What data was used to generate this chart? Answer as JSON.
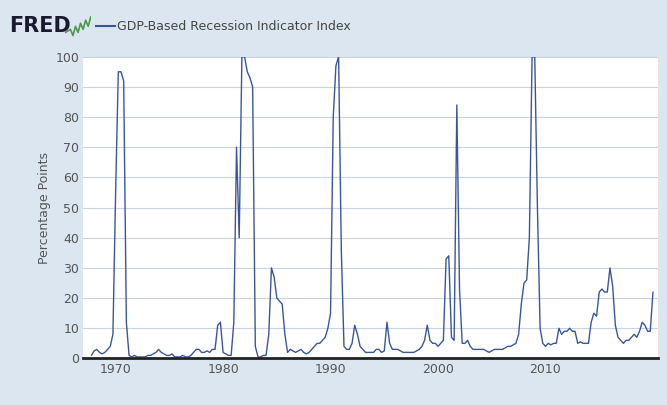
{
  "title": "GDP-Based Recession Indicator Index",
  "ylabel": "Percentage Points",
  "line_color": "#3a5795",
  "background_color": "#dce6f0",
  "plot_bg_color": "#ffffff",
  "grid_color": "#c8d4e3",
  "title_color": "#444444",
  "xlim_start": 1967.0,
  "xlim_end": 2020.5,
  "ylim": [
    0,
    100
  ],
  "yticks": [
    0,
    10,
    20,
    30,
    40,
    50,
    60,
    70,
    80,
    90,
    100
  ],
  "xticks": [
    1970,
    1980,
    1990,
    2000,
    2010
  ],
  "series_label": "GDP-Based Recession Indicator Index",
  "data": [
    [
      1967.75,
      1.0
    ],
    [
      1968.0,
      2.5
    ],
    [
      1968.25,
      3.0
    ],
    [
      1968.5,
      2.0
    ],
    [
      1968.75,
      1.5
    ],
    [
      1969.0,
      2.0
    ],
    [
      1969.25,
      3.0
    ],
    [
      1969.5,
      4.0
    ],
    [
      1969.75,
      8.0
    ],
    [
      1970.0,
      55.0
    ],
    [
      1970.25,
      95.0
    ],
    [
      1970.5,
      95.0
    ],
    [
      1970.75,
      92.0
    ],
    [
      1971.0,
      12.0
    ],
    [
      1971.25,
      1.0
    ],
    [
      1971.5,
      0.5
    ],
    [
      1971.75,
      1.0
    ],
    [
      1972.0,
      0.5
    ],
    [
      1972.25,
      0.5
    ],
    [
      1972.5,
      0.5
    ],
    [
      1972.75,
      0.5
    ],
    [
      1973.0,
      1.0
    ],
    [
      1973.25,
      1.0
    ],
    [
      1973.5,
      1.5
    ],
    [
      1973.75,
      2.0
    ],
    [
      1974.0,
      3.0
    ],
    [
      1974.25,
      2.0
    ],
    [
      1974.5,
      1.5
    ],
    [
      1974.75,
      1.0
    ],
    [
      1975.0,
      1.0
    ],
    [
      1975.25,
      1.5
    ],
    [
      1975.5,
      0.5
    ],
    [
      1975.75,
      0.5
    ],
    [
      1976.0,
      0.5
    ],
    [
      1976.25,
      1.0
    ],
    [
      1976.5,
      0.5
    ],
    [
      1976.75,
      0.5
    ],
    [
      1977.0,
      1.0
    ],
    [
      1977.25,
      2.0
    ],
    [
      1977.5,
      3.0
    ],
    [
      1977.75,
      3.0
    ],
    [
      1978.0,
      2.0
    ],
    [
      1978.25,
      2.0
    ],
    [
      1978.5,
      2.5
    ],
    [
      1978.75,
      2.0
    ],
    [
      1979.0,
      3.0
    ],
    [
      1979.25,
      3.0
    ],
    [
      1979.5,
      11.0
    ],
    [
      1979.75,
      12.0
    ],
    [
      1980.0,
      2.0
    ],
    [
      1980.25,
      1.5
    ],
    [
      1980.5,
      1.0
    ],
    [
      1980.75,
      1.0
    ],
    [
      1981.0,
      12.0
    ],
    [
      1981.25,
      70.0
    ],
    [
      1981.5,
      40.0
    ],
    [
      1981.75,
      100.0
    ],
    [
      1982.0,
      100.0
    ],
    [
      1982.25,
      95.0
    ],
    [
      1982.5,
      93.0
    ],
    [
      1982.75,
      90.0
    ],
    [
      1983.0,
      4.0
    ],
    [
      1983.25,
      0.5
    ],
    [
      1983.5,
      0.5
    ],
    [
      1983.75,
      1.0
    ],
    [
      1984.0,
      1.0
    ],
    [
      1984.25,
      8.0
    ],
    [
      1984.5,
      30.0
    ],
    [
      1984.75,
      27.0
    ],
    [
      1985.0,
      20.0
    ],
    [
      1985.25,
      19.0
    ],
    [
      1985.5,
      18.0
    ],
    [
      1985.75,
      8.0
    ],
    [
      1986.0,
      2.0
    ],
    [
      1986.25,
      3.0
    ],
    [
      1986.5,
      2.5
    ],
    [
      1986.75,
      2.0
    ],
    [
      1987.0,
      2.5
    ],
    [
      1987.25,
      3.0
    ],
    [
      1987.5,
      2.0
    ],
    [
      1987.75,
      1.5
    ],
    [
      1988.0,
      2.0
    ],
    [
      1988.25,
      3.0
    ],
    [
      1988.5,
      4.0
    ],
    [
      1988.75,
      5.0
    ],
    [
      1989.0,
      5.0
    ],
    [
      1989.25,
      6.0
    ],
    [
      1989.5,
      7.0
    ],
    [
      1989.75,
      10.0
    ],
    [
      1990.0,
      15.0
    ],
    [
      1990.25,
      80.0
    ],
    [
      1990.5,
      97.0
    ],
    [
      1990.75,
      100.0
    ],
    [
      1991.0,
      36.0
    ],
    [
      1991.25,
      4.0
    ],
    [
      1991.5,
      3.0
    ],
    [
      1991.75,
      3.0
    ],
    [
      1992.0,
      5.0
    ],
    [
      1992.25,
      11.0
    ],
    [
      1992.5,
      8.0
    ],
    [
      1992.75,
      4.0
    ],
    [
      1993.0,
      3.0
    ],
    [
      1993.25,
      2.0
    ],
    [
      1993.5,
      2.0
    ],
    [
      1993.75,
      2.0
    ],
    [
      1994.0,
      2.0
    ],
    [
      1994.25,
      3.0
    ],
    [
      1994.5,
      3.0
    ],
    [
      1994.75,
      2.0
    ],
    [
      1995.0,
      2.5
    ],
    [
      1995.25,
      12.0
    ],
    [
      1995.5,
      5.0
    ],
    [
      1995.75,
      3.0
    ],
    [
      1996.0,
      3.0
    ],
    [
      1996.25,
      3.0
    ],
    [
      1996.5,
      2.5
    ],
    [
      1996.75,
      2.0
    ],
    [
      1997.0,
      2.0
    ],
    [
      1997.25,
      2.0
    ],
    [
      1997.5,
      2.0
    ],
    [
      1997.75,
      2.0
    ],
    [
      1998.0,
      2.5
    ],
    [
      1998.25,
      3.0
    ],
    [
      1998.5,
      4.0
    ],
    [
      1998.75,
      6.0
    ],
    [
      1999.0,
      11.0
    ],
    [
      1999.25,
      6.0
    ],
    [
      1999.5,
      5.0
    ],
    [
      1999.75,
      5.0
    ],
    [
      2000.0,
      4.0
    ],
    [
      2000.25,
      5.0
    ],
    [
      2000.5,
      6.0
    ],
    [
      2000.75,
      33.0
    ],
    [
      2001.0,
      34.0
    ],
    [
      2001.25,
      7.0
    ],
    [
      2001.5,
      6.0
    ],
    [
      2001.75,
      84.0
    ],
    [
      2002.0,
      23.0
    ],
    [
      2002.25,
      5.0
    ],
    [
      2002.5,
      5.0
    ],
    [
      2002.75,
      6.0
    ],
    [
      2003.0,
      4.0
    ],
    [
      2003.25,
      3.0
    ],
    [
      2003.5,
      3.0
    ],
    [
      2003.75,
      3.0
    ],
    [
      2004.0,
      3.0
    ],
    [
      2004.25,
      3.0
    ],
    [
      2004.5,
      2.5
    ],
    [
      2004.75,
      2.0
    ],
    [
      2005.0,
      2.5
    ],
    [
      2005.25,
      3.0
    ],
    [
      2005.5,
      3.0
    ],
    [
      2005.75,
      3.0
    ],
    [
      2006.0,
      3.0
    ],
    [
      2006.25,
      3.5
    ],
    [
      2006.5,
      4.0
    ],
    [
      2006.75,
      4.0
    ],
    [
      2007.0,
      4.5
    ],
    [
      2007.25,
      5.0
    ],
    [
      2007.5,
      8.0
    ],
    [
      2007.75,
      18.0
    ],
    [
      2008.0,
      25.0
    ],
    [
      2008.25,
      26.0
    ],
    [
      2008.5,
      40.0
    ],
    [
      2008.75,
      100.0
    ],
    [
      2009.0,
      100.0
    ],
    [
      2009.25,
      50.0
    ],
    [
      2009.5,
      10.0
    ],
    [
      2009.75,
      5.0
    ],
    [
      2010.0,
      4.0
    ],
    [
      2010.25,
      5.0
    ],
    [
      2010.5,
      4.5
    ],
    [
      2010.75,
      5.0
    ],
    [
      2011.0,
      5.0
    ],
    [
      2011.25,
      10.0
    ],
    [
      2011.5,
      8.0
    ],
    [
      2011.75,
      9.0
    ],
    [
      2012.0,
      9.0
    ],
    [
      2012.25,
      10.0
    ],
    [
      2012.5,
      9.0
    ],
    [
      2012.75,
      9.0
    ],
    [
      2013.0,
      5.0
    ],
    [
      2013.25,
      5.5
    ],
    [
      2013.5,
      5.0
    ],
    [
      2013.75,
      5.0
    ],
    [
      2014.0,
      5.0
    ],
    [
      2014.25,
      12.0
    ],
    [
      2014.5,
      15.0
    ],
    [
      2014.75,
      14.0
    ],
    [
      2015.0,
      22.0
    ],
    [
      2015.25,
      23.0
    ],
    [
      2015.5,
      22.0
    ],
    [
      2015.75,
      22.0
    ],
    [
      2016.0,
      30.0
    ],
    [
      2016.25,
      24.0
    ],
    [
      2016.5,
      11.0
    ],
    [
      2016.75,
      7.0
    ],
    [
      2017.0,
      6.0
    ],
    [
      2017.25,
      5.0
    ],
    [
      2017.5,
      6.0
    ],
    [
      2017.75,
      6.0
    ],
    [
      2018.0,
      7.0
    ],
    [
      2018.25,
      8.0
    ],
    [
      2018.5,
      7.0
    ],
    [
      2018.75,
      9.0
    ],
    [
      2019.0,
      12.0
    ],
    [
      2019.25,
      11.0
    ],
    [
      2019.5,
      9.0
    ],
    [
      2019.75,
      9.0
    ],
    [
      2020.0,
      22.0
    ]
  ]
}
